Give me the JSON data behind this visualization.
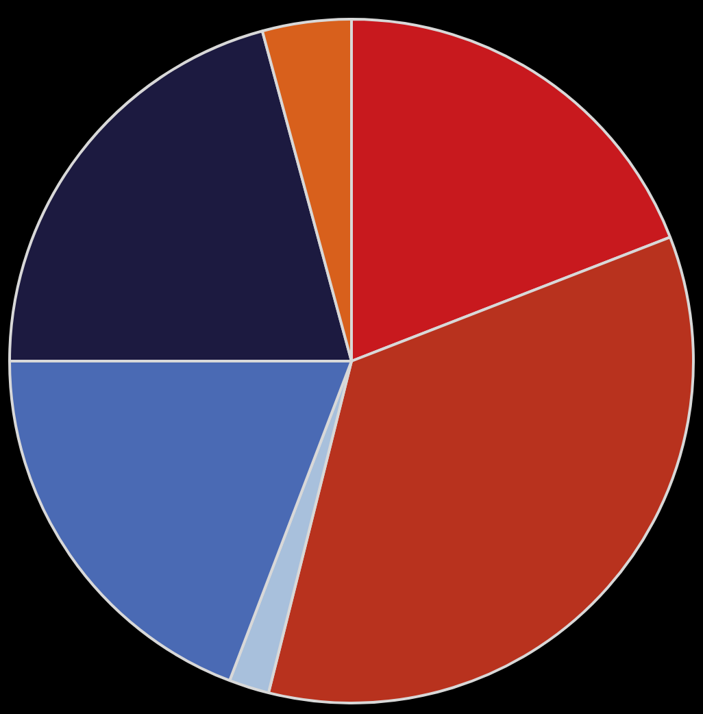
{
  "chart_data": {
    "type": "pie",
    "categories": [
      null,
      null,
      null,
      null,
      null,
      null
    ],
    "values": [
      19.1,
      34.8,
      1.9,
      19.2,
      20.8,
      4.2
    ],
    "colors": [
      "#c8191e",
      "#b8321e",
      "#a8c0dc",
      "#4a6ab4",
      "#1c1a40",
      "#d8601c"
    ]
  }
}
